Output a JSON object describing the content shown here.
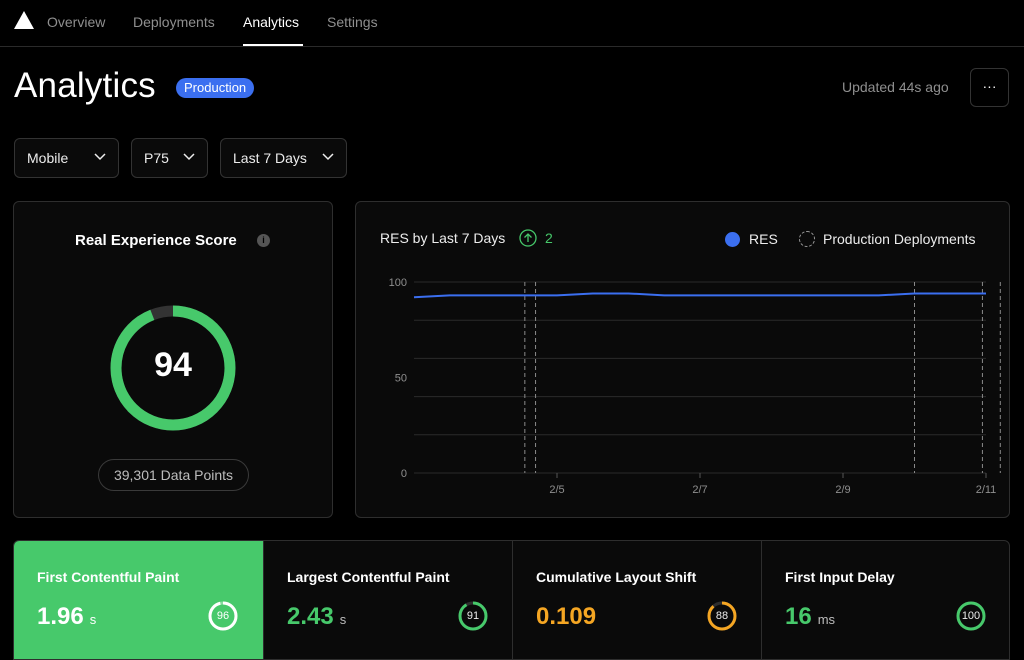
{
  "nav": {
    "logo": "triangle-logo",
    "items": [
      {
        "label": "Overview"
      },
      {
        "label": "Deployments"
      },
      {
        "label": "Analytics"
      },
      {
        "label": "Settings"
      }
    ]
  },
  "header": {
    "title": "Analytics",
    "badge": "Production",
    "updated": "Updated 44s ago",
    "more_label": "···"
  },
  "filters": {
    "device": "Mobile",
    "percentile": "P75",
    "range": "Last 7 Days"
  },
  "score": {
    "title": "Real Experience Score",
    "info": "i",
    "value": "94",
    "value_fraction": 0.94,
    "data_points": "39,301 Data Points",
    "color": "#47c96b"
  },
  "chart": {
    "title": "RES by Last 7 Days",
    "trend": "2",
    "legend_res": "RES",
    "legend_prod": "Production Deployments"
  },
  "chart_data": {
    "type": "line",
    "title": "RES by Last 7 Days",
    "x_tick_labels": [
      "2/5",
      "2/7",
      "2/9",
      "2/11"
    ],
    "y_tick_labels": [
      "100",
      "50",
      "0"
    ],
    "ylim": [
      0,
      100
    ],
    "grid": true,
    "legend": "top-right",
    "series": [
      {
        "name": "RES",
        "color": "#3b6ff0",
        "x": [
          0,
          0.5,
          1,
          1.5,
          2,
          2.5,
          3,
          3.5,
          4,
          4.5,
          5,
          5.5,
          6,
          6.5,
          7,
          7.5,
          8
        ],
        "values": [
          92,
          93,
          93,
          93,
          93,
          94,
          94,
          93,
          93,
          93,
          93,
          93,
          93,
          93,
          94,
          94,
          94
        ]
      }
    ],
    "deployments": [
      1.55,
      1.7,
      7.0,
      7.95,
      8.2
    ]
  },
  "metrics": [
    {
      "label": "First Contentful Paint",
      "value": "1.96",
      "unit": "s",
      "score": "96",
      "fraction": 0.96,
      "color": "#ffffff"
    },
    {
      "label": "Largest Contentful Paint",
      "value": "2.43",
      "unit": "s",
      "score": "91",
      "fraction": 0.91,
      "color": "#47c96b"
    },
    {
      "label": "Cumulative Layout Shift",
      "value": "0.109",
      "unit": "",
      "score": "88",
      "fraction": 0.88,
      "color": "#f5a623"
    },
    {
      "label": "First Input Delay",
      "value": "16",
      "unit": "ms",
      "score": "100",
      "fraction": 1.0,
      "color": "#47c96b"
    }
  ]
}
